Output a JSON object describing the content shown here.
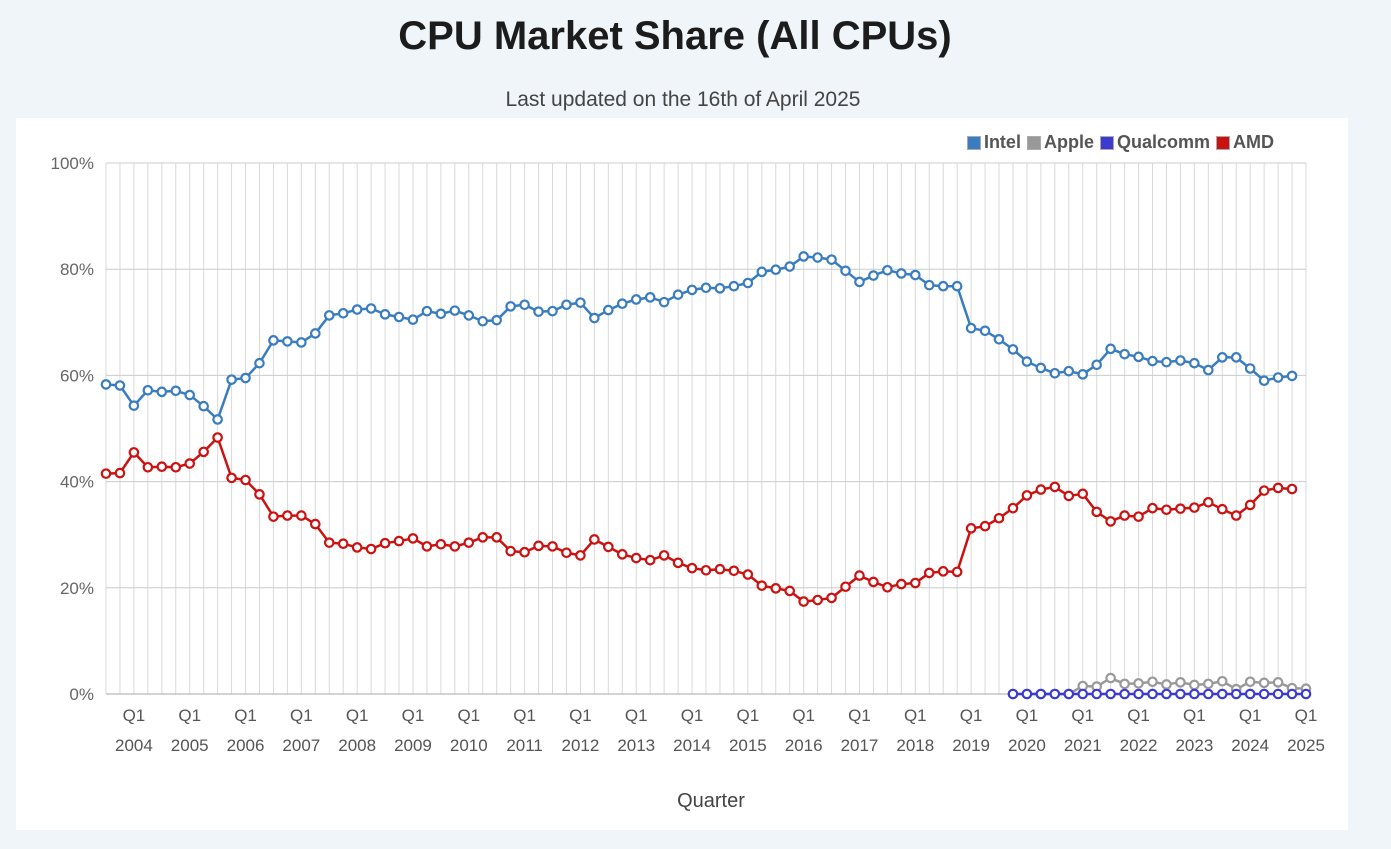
{
  "header": {
    "title": "CPU Market Share (All CPUs)",
    "subtitle": "Last updated on the 16th of April 2025"
  },
  "colors": {
    "Intel": "#3a7cc0",
    "Apple": "#999999",
    "Qualcomm": "#3b3bd1",
    "AMD": "#cc1111",
    "background": "#f0f5f9",
    "grid": "#cccccc"
  },
  "chart_data": {
    "type": "line",
    "title": "",
    "xlabel": "Quarter",
    "ylabel": "",
    "ylim": [
      0,
      100
    ],
    "y_ticks": [
      "0%",
      "20%",
      "40%",
      "60%",
      "80%",
      "100%"
    ],
    "x_tick_labels": [
      {
        "q": "Q1",
        "year": "2004"
      },
      {
        "q": "Q1",
        "year": "2005"
      },
      {
        "q": "Q1",
        "year": "2006"
      },
      {
        "q": "Q1",
        "year": "2007"
      },
      {
        "q": "Q1",
        "year": "2008"
      },
      {
        "q": "Q1",
        "year": "2009"
      },
      {
        "q": "Q1",
        "year": "2010"
      },
      {
        "q": "Q1",
        "year": "2011"
      },
      {
        "q": "Q1",
        "year": "2012"
      },
      {
        "q": "Q1",
        "year": "2013"
      },
      {
        "q": "Q1",
        "year": "2014"
      },
      {
        "q": "Q1",
        "year": "2015"
      },
      {
        "q": "Q1",
        "year": "2016"
      },
      {
        "q": "Q1",
        "year": "2017"
      },
      {
        "q": "Q1",
        "year": "2018"
      },
      {
        "q": "Q1",
        "year": "2019"
      },
      {
        "q": "Q1",
        "year": "2020"
      },
      {
        "q": "Q1",
        "year": "2021"
      },
      {
        "q": "Q1",
        "year": "2022"
      },
      {
        "q": "Q1",
        "year": "2023"
      },
      {
        "q": "Q1",
        "year": "2024"
      },
      {
        "q": "Q1",
        "year": "2025"
      }
    ],
    "legend_position": "top-right",
    "grid": true,
    "x_start": "Q3 2003",
    "x_end": "Q1 2025",
    "series": [
      {
        "name": "Intel",
        "start": "Q3 2003",
        "values": [
          58.3,
          58.1,
          54.3,
          57.2,
          56.9,
          57.1,
          56.3,
          54.2,
          51.7,
          59.2,
          59.5,
          62.3,
          66.6,
          66.4,
          66.2,
          67.9,
          71.3,
          71.7,
          72.4,
          72.6,
          71.5,
          71.0,
          70.5,
          72.1,
          71.6,
          72.2,
          71.3,
          70.2,
          70.4,
          73.0,
          73.3,
          72.0,
          72.1,
          73.3,
          73.7,
          70.8,
          72.3,
          73.5,
          74.3,
          74.7,
          73.8,
          75.2,
          76.1,
          76.5,
          76.4,
          76.8,
          77.4,
          79.5,
          79.9,
          80.5,
          82.4,
          82.2,
          81.8,
          79.7,
          77.6,
          78.8,
          79.8,
          79.2,
          78.9,
          77.0,
          76.8,
          76.8,
          68.9,
          68.4,
          66.8,
          64.9,
          62.6,
          61.4,
          60.4,
          60.8,
          60.2,
          62.0,
          65.0,
          64.0,
          63.5,
          62.7,
          62.5,
          62.8,
          62.3,
          61.0,
          63.4,
          63.4,
          61.3,
          59.0,
          59.6,
          59.9
        ]
      },
      {
        "name": "AMD",
        "start": "Q3 2003",
        "values": [
          41.5,
          41.6,
          45.5,
          42.7,
          42.8,
          42.7,
          43.4,
          45.6,
          48.3,
          40.7,
          40.3,
          37.6,
          33.4,
          33.6,
          33.6,
          32.0,
          28.5,
          28.3,
          27.6,
          27.3,
          28.4,
          28.8,
          29.3,
          27.8,
          28.2,
          27.8,
          28.5,
          29.5,
          29.5,
          26.9,
          26.7,
          27.9,
          27.8,
          26.6,
          26.1,
          29.1,
          27.7,
          26.3,
          25.6,
          25.2,
          26.1,
          24.7,
          23.7,
          23.3,
          23.5,
          23.2,
          22.5,
          20.4,
          19.9,
          19.4,
          17.4,
          17.7,
          18.1,
          20.2,
          22.3,
          21.1,
          20.1,
          20.7,
          20.9,
          22.8,
          23.1,
          23.0,
          31.2,
          31.6,
          33.1,
          35.0,
          37.4,
          38.5,
          39.0,
          37.3,
          37.7,
          34.3,
          32.5,
          33.6,
          33.4,
          35.0,
          34.7,
          34.9,
          35.1,
          36.1,
          34.8,
          33.6,
          35.6,
          38.3,
          38.8,
          38.6
        ]
      },
      {
        "name": "Apple",
        "start": "Q4 2019",
        "values": [
          0,
          0,
          0,
          0,
          0,
          1.5,
          1.4,
          3.0,
          1.9,
          2.0,
          2.3,
          1.8,
          2.2,
          1.7,
          1.9,
          2.4,
          0.9,
          2.3,
          2.1,
          2.2,
          1.1,
          1.0
        ]
      },
      {
        "name": "Qualcomm",
        "start": "Q4 2019",
        "values": [
          0,
          0,
          0,
          0,
          0,
          0,
          0,
          0,
          0,
          0,
          0,
          0,
          0,
          0,
          0,
          0,
          0,
          0,
          0,
          0,
          0,
          0
        ]
      }
    ]
  }
}
